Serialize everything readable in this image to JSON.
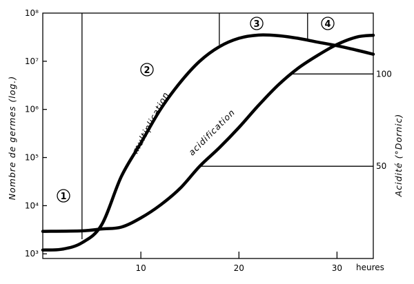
{
  "chart_data": {
    "type": "line",
    "xlabel": "heures",
    "ylabel": "Nombre de germes (log.)",
    "y2label": "Acidité (°Dornic)",
    "xlim": [
      0,
      33.7
    ],
    "ylim": [
      800,
      100000000
    ],
    "yscale": "log",
    "y2lim": [
      0,
      133
    ],
    "grid": false,
    "x_ticks": [
      "10",
      "20",
      "30"
    ],
    "x_tick_values": [
      10,
      20,
      30
    ],
    "y_ticks": [
      "10³",
      "10⁴",
      "10⁵",
      "10⁶",
      "10⁷",
      "10⁸"
    ],
    "y_tick_values": [
      1000,
      10000,
      100000,
      1000000,
      10000000,
      100000000
    ],
    "y2_ticks": [
      "50",
      "100"
    ],
    "y2_tick_values": [
      50,
      100
    ],
    "series": [
      {
        "name": "multiplication",
        "axis": "left",
        "x": [
          0,
          2,
          4,
          6,
          8,
          10,
          12,
          14,
          16,
          18,
          20,
          22,
          24,
          26,
          28,
          30,
          32,
          33.7
        ],
        "y": [
          1200,
          1250,
          1700,
          4000,
          40000,
          200000,
          1000000,
          3600000,
          10000000,
          20000000,
          30000000,
          35000000,
          34000000,
          30000000,
          25000000,
          21000000,
          17000000,
          14000000
        ]
      },
      {
        "name": "acidification",
        "axis": "right",
        "x": [
          0,
          4,
          6,
          8,
          10,
          12,
          14,
          16,
          18,
          20,
          22,
          24,
          26,
          28,
          30,
          32,
          33.7
        ],
        "y": [
          14.7,
          15,
          16,
          17,
          22,
          29,
          38,
          50,
          60,
          71,
          83,
          94,
          103,
          110,
          116,
          120,
          121
        ]
      }
    ],
    "phases": [
      {
        "label": "1"
      },
      {
        "label": "2"
      },
      {
        "label": "3"
      },
      {
        "label": "4"
      }
    ],
    "phase_boundaries_hours": [
      4,
      18,
      27
    ],
    "reference_lines_acidity": [
      50,
      100
    ]
  }
}
